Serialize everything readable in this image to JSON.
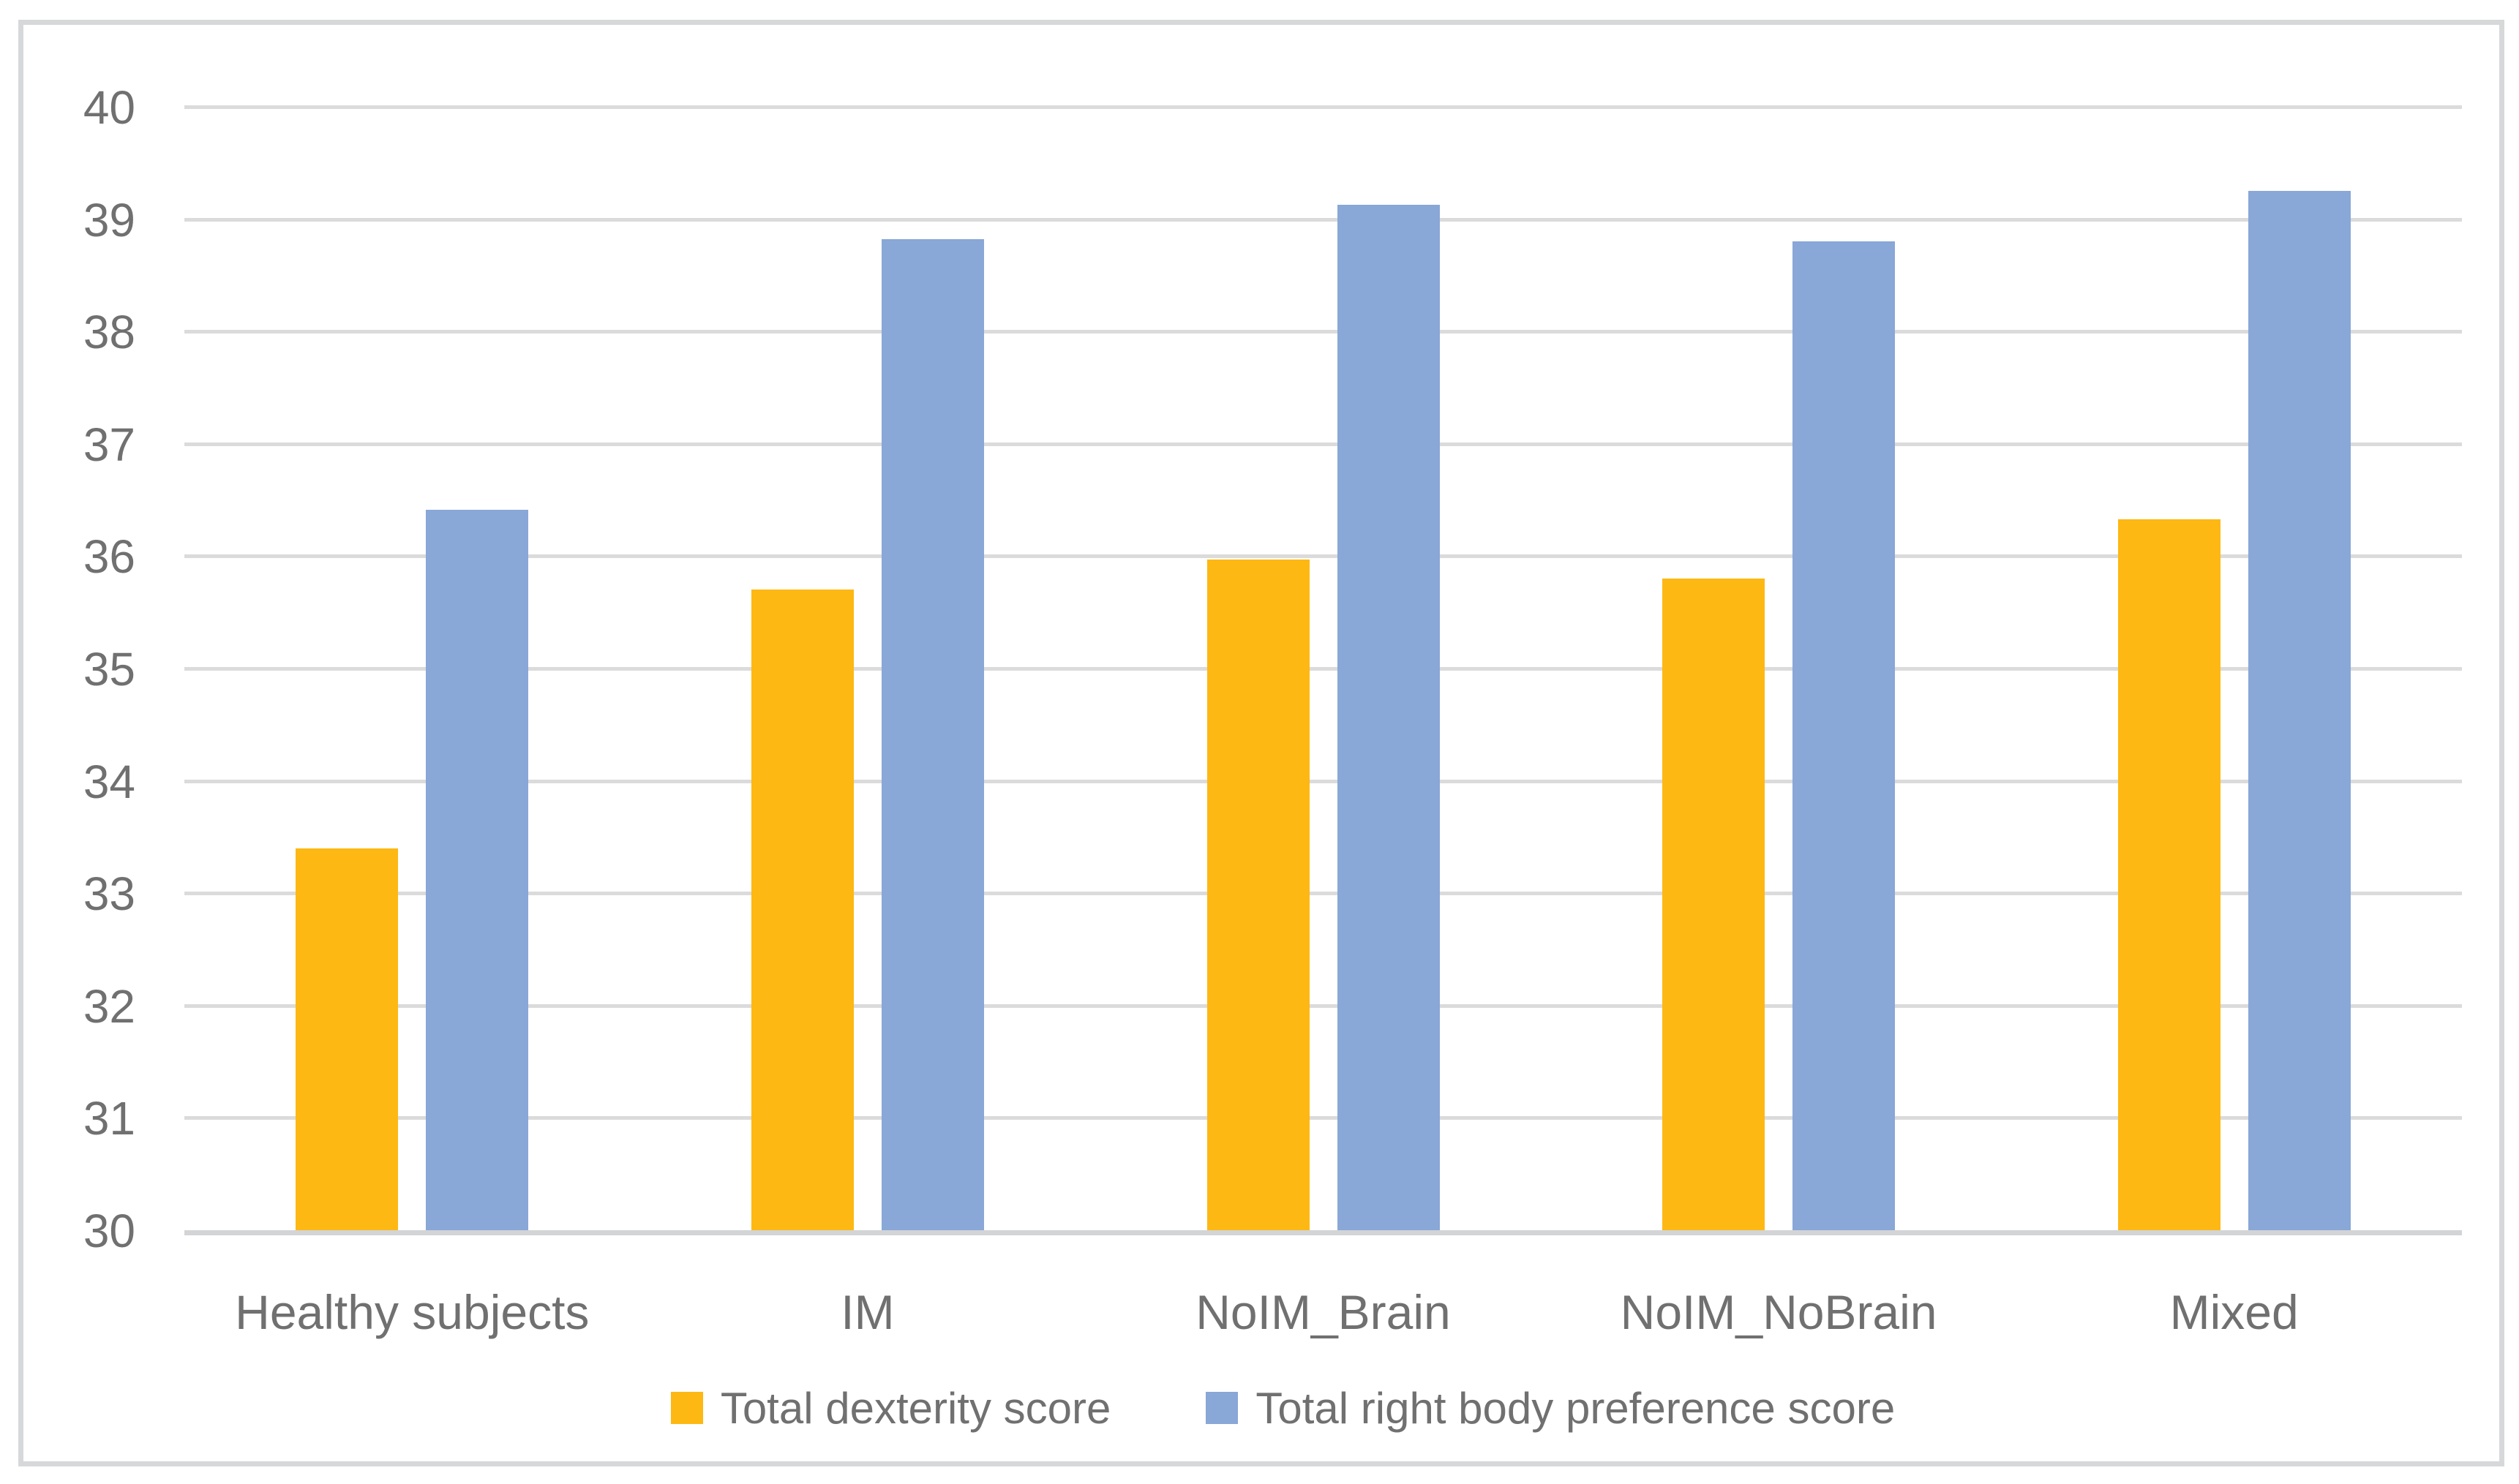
{
  "chart_data": {
    "type": "bar",
    "title": "",
    "xlabel": "",
    "ylabel": "",
    "categories": [
      "Healthy subjects",
      "IM",
      "NoIM_Brain",
      "NoIM_NoBrain",
      "Mixed"
    ],
    "series": [
      {
        "name": "Total dexterity score",
        "color": "#fdb813",
        "values": [
          33.4,
          35.7,
          35.97,
          35.8,
          36.33
        ]
      },
      {
        "name": "Total right body preference score",
        "color": "#89a7d7",
        "values": [
          36.41,
          38.82,
          39.13,
          38.8,
          39.25
        ]
      }
    ],
    "ylim": [
      30,
      40
    ],
    "yticks": [
      30,
      31,
      32,
      33,
      34,
      35,
      36,
      37,
      38,
      39,
      40
    ],
    "grid": true,
    "legend_position": "bottom"
  },
  "colors": {
    "gridline": "#dbdbdb",
    "axis_line": "#d2d4d6",
    "frame_border": "#d6d8da",
    "text": "#707070",
    "background": "#ffffff"
  }
}
